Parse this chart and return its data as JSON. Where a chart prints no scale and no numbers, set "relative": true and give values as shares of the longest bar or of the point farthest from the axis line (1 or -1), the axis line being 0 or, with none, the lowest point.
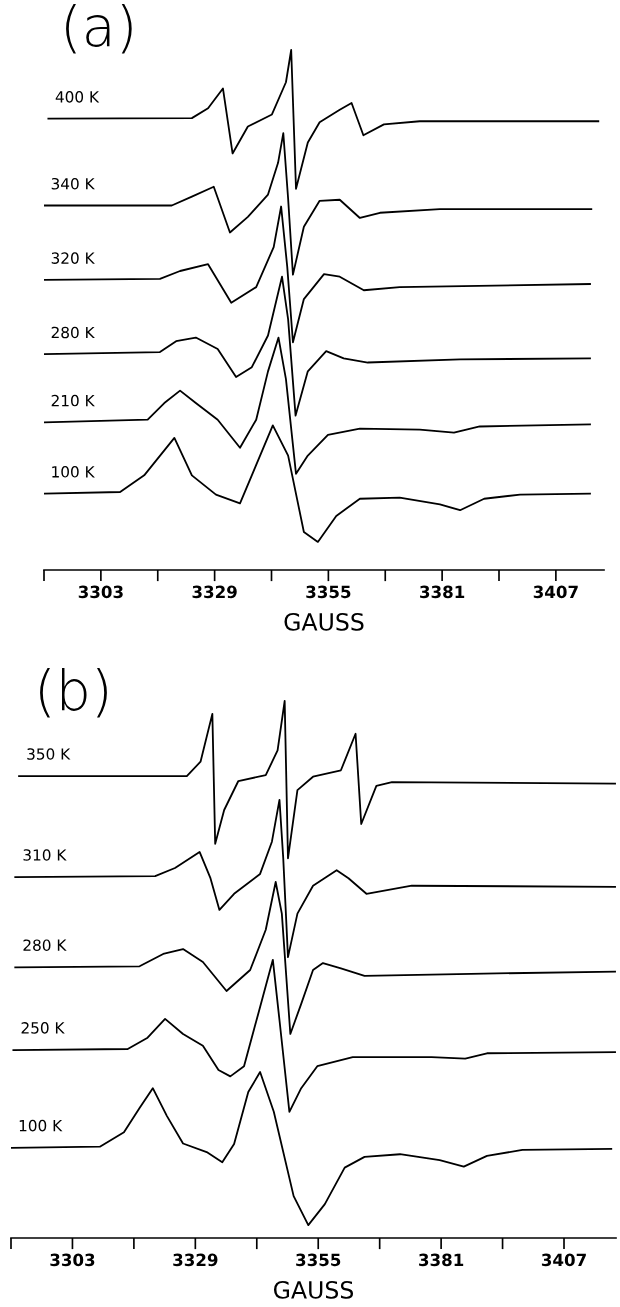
{
  "chart_data": [
    {
      "type": "line",
      "title": "(a)",
      "xlabel": "GAUSS",
      "relative": true,
      "tick_labels": "x",
      "legend": false,
      "grid": false,
      "xlim": [
        3290,
        3418
      ],
      "xticks": [
        {
          "value": 3290,
          "label": null
        },
        3303,
        {
          "value": 3316,
          "label": null
        },
        3329,
        {
          "value": 3342,
          "label": null
        },
        3355,
        {
          "value": 3368,
          "label": null
        },
        3381,
        {
          "value": 3394,
          "label": null
        },
        3407
      ],
      "series": [
        {
          "name": "400 K",
          "color": "#000000",
          "x": [
            3291.0,
            3323.8,
            3327.5,
            3330.9,
            3333.1,
            3336.6,
            3342.1,
            3345.3,
            3346.5,
            3347.6,
            3350.3,
            3353.0,
            3357.6,
            3360.3,
            3363.0,
            3367.7,
            3375.9,
            3416.7
          ],
          "values": [
            0.868,
            0.869,
            0.888,
            0.926,
            0.801,
            0.853,
            0.876,
            0.938,
            1.0,
            0.733,
            0.822,
            0.861,
            0.885,
            0.898,
            0.836,
            0.857,
            0.863,
            0.863
          ]
        },
        {
          "name": "340 K",
          "color": "#000000",
          "x": [
            3290.0,
            3319.2,
            3323.8,
            3328.8,
            3332.5,
            3336.6,
            3341.2,
            3343.5,
            3344.7,
            3345.8,
            3346.9,
            3349.4,
            3353.0,
            3357.6,
            3362.2,
            3366.8,
            3380.5,
            3415.1
          ],
          "values": [
            0.701,
            0.701,
            0.718,
            0.737,
            0.649,
            0.679,
            0.722,
            0.783,
            0.84,
            0.714,
            0.568,
            0.66,
            0.71,
            0.712,
            0.677,
            0.687,
            0.694,
            0.694
          ]
        },
        {
          "name": "320 K",
          "color": "#000000",
          "x": [
            3290.0,
            3316.5,
            3321.1,
            3327.5,
            3332.8,
            3338.5,
            3342.5,
            3344.2,
            3345.6,
            3346.9,
            3349.4,
            3354.0,
            3357.6,
            3363.1,
            3371.3,
            3414.8
          ],
          "values": [
            0.558,
            0.56,
            0.575,
            0.588,
            0.514,
            0.544,
            0.621,
            0.699,
            0.583,
            0.438,
            0.521,
            0.569,
            0.564,
            0.538,
            0.544,
            0.55
          ]
        },
        {
          "name": "280 K",
          "color": "#000000",
          "x": [
            3290.0,
            3316.5,
            3320.2,
            3324.7,
            3329.7,
            3333.9,
            3337.5,
            3341.2,
            3344.4,
            3345.8,
            3347.5,
            3350.3,
            3354.5,
            3358.5,
            3364.0,
            3385.1,
            3414.8
          ],
          "values": [
            0.415,
            0.419,
            0.44,
            0.447,
            0.425,
            0.371,
            0.39,
            0.451,
            0.564,
            0.482,
            0.297,
            0.382,
            0.421,
            0.407,
            0.399,
            0.405,
            0.407
          ]
        },
        {
          "name": "210 K",
          "color": "#000000",
          "x": [
            3290.0,
            3313.7,
            3317.5,
            3321.1,
            3324.7,
            3329.7,
            3334.8,
            3338.5,
            3341.2,
            3343.6,
            3345.3,
            3347.6,
            3350.3,
            3354.9,
            3362.2,
            3375.9,
            3383.7,
            3389.6,
            3414.8
          ],
          "values": [
            0.284,
            0.289,
            0.321,
            0.345,
            0.321,
            0.289,
            0.235,
            0.289,
            0.382,
            0.447,
            0.367,
            0.185,
            0.22,
            0.26,
            0.272,
            0.27,
            0.264,
            0.276,
            0.28
          ]
        },
        {
          "name": "100 K",
          "color": "#000000",
          "x": [
            3290.0,
            3307.4,
            3312.9,
            3319.8,
            3323.8,
            3329.3,
            3334.8,
            3337.5,
            3342.3,
            3345.8,
            3349.4,
            3352.6,
            3356.8,
            3362.2,
            3371.3,
            3380.5,
            3385.1,
            3390.6,
            3398.8,
            3414.8
          ],
          "values": [
            0.147,
            0.15,
            0.182,
            0.254,
            0.182,
            0.145,
            0.128,
            0.182,
            0.278,
            0.22,
            0.073,
            0.054,
            0.104,
            0.137,
            0.139,
            0.126,
            0.115,
            0.137,
            0.145,
            0.147
          ]
        }
      ]
    },
    {
      "type": "line",
      "title": "(b)",
      "xlabel": "GAUSS",
      "relative": true,
      "tick_labels": "x",
      "legend": false,
      "grid": false,
      "xlim": [
        3290,
        3418
      ],
      "xticks": [
        {
          "value": 3290,
          "label": null
        },
        3303,
        {
          "value": 3316,
          "label": null
        },
        3329,
        {
          "value": 3342,
          "label": null
        },
        3355,
        {
          "value": 3368,
          "label": null
        },
        3381,
        {
          "value": 3394,
          "label": null
        },
        3407
      ],
      "series": [
        {
          "name": "350 K",
          "color": "#000000",
          "x": [
            3291.7,
            3327.2,
            3330.1,
            3332.6,
            3333.2,
            3335.1,
            3338.1,
            3343.9,
            3346.4,
            3347.9,
            3348.6,
            3350.6,
            3353.9,
            3359.8,
            3362.9,
            3364.1,
            3367.3,
            3370.6,
            3417.8
          ],
          "values": [
            0.86,
            0.86,
            0.887,
            0.976,
            0.734,
            0.797,
            0.851,
            0.862,
            0.908,
            1.0,
            0.707,
            0.834,
            0.859,
            0.871,
            0.939,
            0.771,
            0.842,
            0.849,
            0.846
          ]
        },
        {
          "name": "310 K",
          "color": "#000000",
          "x": [
            3290.9,
            3320.5,
            3324.7,
            3329.9,
            3332.2,
            3334.1,
            3337.2,
            3342.7,
            3345.2,
            3346.8,
            3347.6,
            3348.6,
            3350.6,
            3353.9,
            3358.9,
            3361.4,
            3365.2,
            3374.8,
            3417.8
          ],
          "values": [
            0.672,
            0.674,
            0.689,
            0.719,
            0.67,
            0.611,
            0.641,
            0.678,
            0.738,
            0.816,
            0.707,
            0.523,
            0.604,
            0.656,
            0.685,
            0.67,
            0.641,
            0.656,
            0.654
          ]
        },
        {
          "name": "280 K",
          "color": "#000000",
          "x": [
            3290.9,
            3317.2,
            3322.2,
            3326.4,
            3330.6,
            3335.6,
            3340.6,
            3343.9,
            3346.0,
            3347.3,
            3349.1,
            3351.4,
            3353.9,
            3356.0,
            3359.8,
            3364.8,
            3387.3,
            3417.8
          ],
          "values": [
            0.504,
            0.506,
            0.529,
            0.538,
            0.514,
            0.46,
            0.499,
            0.574,
            0.663,
            0.604,
            0.38,
            0.436,
            0.499,
            0.512,
            0.502,
            0.488,
            0.492,
            0.496
          ]
        },
        {
          "name": "250 K",
          "color": "#000000",
          "x": [
            3290.5,
            3314.7,
            3318.9,
            3322.6,
            3326.4,
            3330.6,
            3333.9,
            3336.4,
            3339.3,
            3342.2,
            3345.4,
            3346.8,
            3348.9,
            3351.4,
            3354.8,
            3362.3,
            3379.0,
            3386.1,
            3390.7,
            3417.8
          ],
          "values": [
            0.35,
            0.352,
            0.373,
            0.408,
            0.38,
            0.358,
            0.313,
            0.301,
            0.32,
            0.414,
            0.518,
            0.406,
            0.235,
            0.279,
            0.32,
            0.337,
            0.337,
            0.334,
            0.344,
            0.346
          ]
        },
        {
          "name": "100 K",
          "color": "#000000",
          "x": [
            3290.0,
            3308.8,
            3313.9,
            3317.2,
            3320.0,
            3323.0,
            3326.4,
            3331.4,
            3334.7,
            3337.2,
            3340.2,
            3342.7,
            3345.6,
            3349.8,
            3352.9,
            3356.4,
            3360.6,
            3364.8,
            3372.3,
            3380.7,
            3385.8,
            3390.7,
            3398.2,
            3417.0
          ],
          "values": [
            0.168,
            0.17,
            0.197,
            0.242,
            0.279,
            0.227,
            0.176,
            0.16,
            0.141,
            0.175,
            0.272,
            0.309,
            0.235,
            0.078,
            0.024,
            0.063,
            0.131,
            0.151,
            0.156,
            0.145,
            0.133,
            0.153,
            0.164,
            0.166
          ]
        }
      ]
    }
  ]
}
